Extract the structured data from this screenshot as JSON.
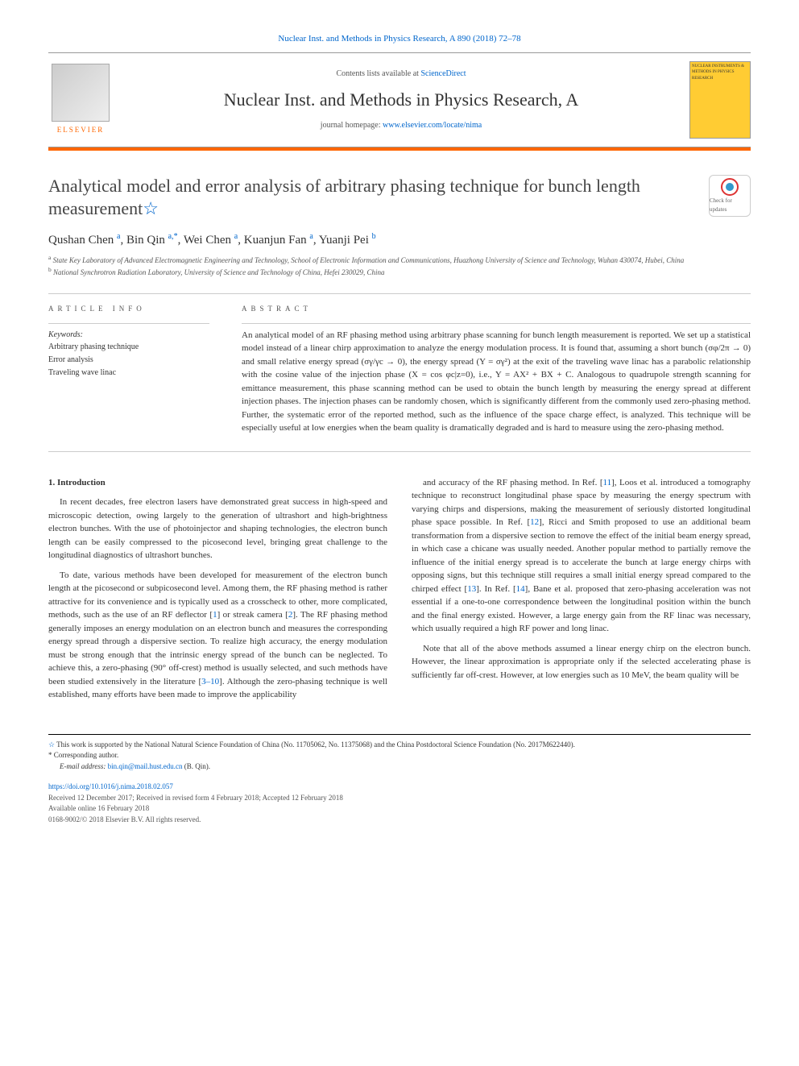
{
  "colors": {
    "link": "#0066cc",
    "accent": "#ff6600",
    "text": "#333333",
    "muted": "#555555",
    "rule": "#cccccc"
  },
  "typography": {
    "body_font": "Georgia, 'Times New Roman', serif",
    "title_size_pt": 22,
    "journal_name_size_pt": 22,
    "authors_size_pt": 15,
    "body_size_pt": 11,
    "footnote_size_pt": 9
  },
  "header": {
    "top_link": "Nuclear Inst. and Methods in Physics Research, A 890 (2018) 72–78",
    "contents_text": "Contents lists available at ",
    "contents_link": "ScienceDirect",
    "journal_name": "Nuclear Inst. and Methods in Physics Research, A",
    "homepage_label": "journal homepage: ",
    "homepage_link": "www.elsevier.com/locate/nima",
    "publisher": "ELSEVIER",
    "cover_text": "NUCLEAR INSTRUMENTS & METHODS IN PHYSICS RESEARCH"
  },
  "paper": {
    "title": "Analytical model and error analysis of arbitrary phasing technique for bunch length measurement",
    "check_updates": "Check for updates",
    "authors_html": "Qushan Chen <sup>a</sup>, Bin Qin <sup>a,*</sup>, Wei Chen <sup>a</sup>, Kuanjun Fan <sup>a</sup>, Yuanji Pei <sup>b</sup>",
    "affiliations": {
      "a": "State Key Laboratory of Advanced Electromagnetic Engineering and Technology, School of Electronic Information and Communications, Huazhong University of Science and Technology, Wuhan 430074, Hubei, China",
      "b": "National Synchrotron Radiation Laboratory, University of Science and Technology of China, Hefei 230029, China"
    }
  },
  "article_info": {
    "label": "ARTICLE INFO",
    "keywords_label": "Keywords:",
    "keywords": [
      "Arbitrary phasing technique",
      "Error analysis",
      "Traveling wave linac"
    ]
  },
  "abstract": {
    "label": "ABSTRACT",
    "text": "An analytical model of an RF phasing method using arbitrary phase scanning for bunch length measurement is reported. We set up a statistical model instead of a linear chirp approximation to analyze the energy modulation process. It is found that, assuming a short bunch (σφ/2π → 0) and small relative energy spread (σγ/γc → 0), the energy spread (Y = σγ²) at the exit of the traveling wave linac has a parabolic relationship with the cosine value of the injection phase (X = cos φc|z=0), i.e., Y = AX² + BX + C. Analogous to quadrupole strength scanning for emittance measurement, this phase scanning method can be used to obtain the bunch length by measuring the energy spread at different injection phases. The injection phases can be randomly chosen, which is significantly different from the commonly used zero-phasing method. Further, the systematic error of the reported method, such as the influence of the space charge effect, is analyzed. This technique will be especially useful at low energies when the beam quality is dramatically degraded and is hard to measure using the zero-phasing method."
  },
  "body": {
    "section_1_heading": "1. Introduction",
    "para_1": "In recent decades, free electron lasers have demonstrated great success in high-speed and microscopic detection, owing largely to the generation of ultrashort and high-brightness electron bunches. With the use of photoinjector and shaping technologies, the electron bunch length can be easily compressed to the picosecond level, bringing great challenge to the longitudinal diagnostics of ultrashort bunches.",
    "para_2": "To date, various methods have been developed for measurement of the electron bunch length at the picosecond or subpicosecond level. Among them, the RF phasing method is rather attractive for its convenience and is typically used as a crosscheck to other, more complicated, methods, such as the use of an RF deflector [1] or streak camera [2]. The RF phasing method generally imposes an energy modulation on an electron bunch and measures the corresponding energy spread through a dispersive section. To realize high accuracy, the energy modulation must be strong enough that the intrinsic energy spread of the bunch can be neglected. To achieve this, a zero-phasing (90° off-crest) method is usually selected, and such methods have been studied extensively in the literature [3–10]. Although the zero-phasing technique is well established, many efforts have been made to improve the applicability",
    "para_3": "and accuracy of the RF phasing method. In Ref. [11], Loos et al. introduced a tomography technique to reconstruct longitudinal phase space by measuring the energy spectrum with varying chirps and dispersions, making the measurement of seriously distorted longitudinal phase space possible. In Ref. [12], Ricci and Smith proposed to use an additional beam transformation from a dispersive section to remove the effect of the initial beam energy spread, in which case a chicane was usually needed. Another popular method to partially remove the influence of the initial energy spread is to accelerate the bunch at large energy chirps with opposing signs, but this technique still requires a small initial energy spread compared to the chirped effect [13]. In Ref. [14], Bane et al. proposed that zero-phasing acceleration was not essential if a one-to-one correspondence between the longitudinal position within the bunch and the final energy existed. However, a large energy gain from the RF linac was necessary, which usually required a high RF power and long linac.",
    "para_4": "Note that all of the above methods assumed a linear energy chirp on the electron bunch. However, the linear approximation is appropriate only if the selected accelerating phase is sufficiently far off-crest. However, at low energies such as 10 MeV, the beam quality will be"
  },
  "footnotes": {
    "funding": "This work is supported by the National Natural Science Foundation of China (No. 11705062, No. 11375068) and the China Postdoctoral Science Foundation (No. 2017M622440).",
    "corresponding": "Corresponding author.",
    "email_label": "E-mail address:",
    "email": "bin.qin@mail.hust.edu.cn",
    "email_name": "(B. Qin)."
  },
  "publication": {
    "doi": "https://doi.org/10.1016/j.nima.2018.02.057",
    "dates": "Received 12 December 2017; Received in revised form 4 February 2018; Accepted 12 February 2018",
    "available": "Available online 16 February 2018",
    "copyright": "0168-9002/© 2018 Elsevier B.V. All rights reserved."
  }
}
